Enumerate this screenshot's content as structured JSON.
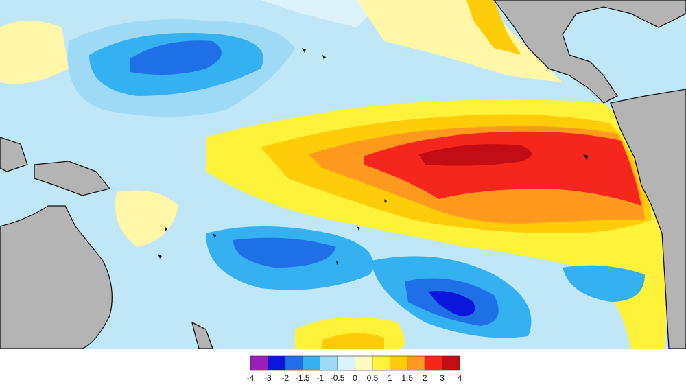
{
  "colorbar": {
    "ticks": [
      -4,
      -3,
      -2,
      -1.5,
      -1,
      -0.5,
      0,
      0.5,
      1,
      1.5,
      2,
      3,
      4
    ],
    "colors": [
      "#9a1fb6",
      "#0b16dc",
      "#1f6fe6",
      "#35b0f0",
      "#9ed9f6",
      "#d9f4fb",
      "#fffbc2",
      "#fff23a",
      "#ffcc0a",
      "#ff9a1e",
      "#f5261c",
      "#c20d14"
    ]
  }
}
